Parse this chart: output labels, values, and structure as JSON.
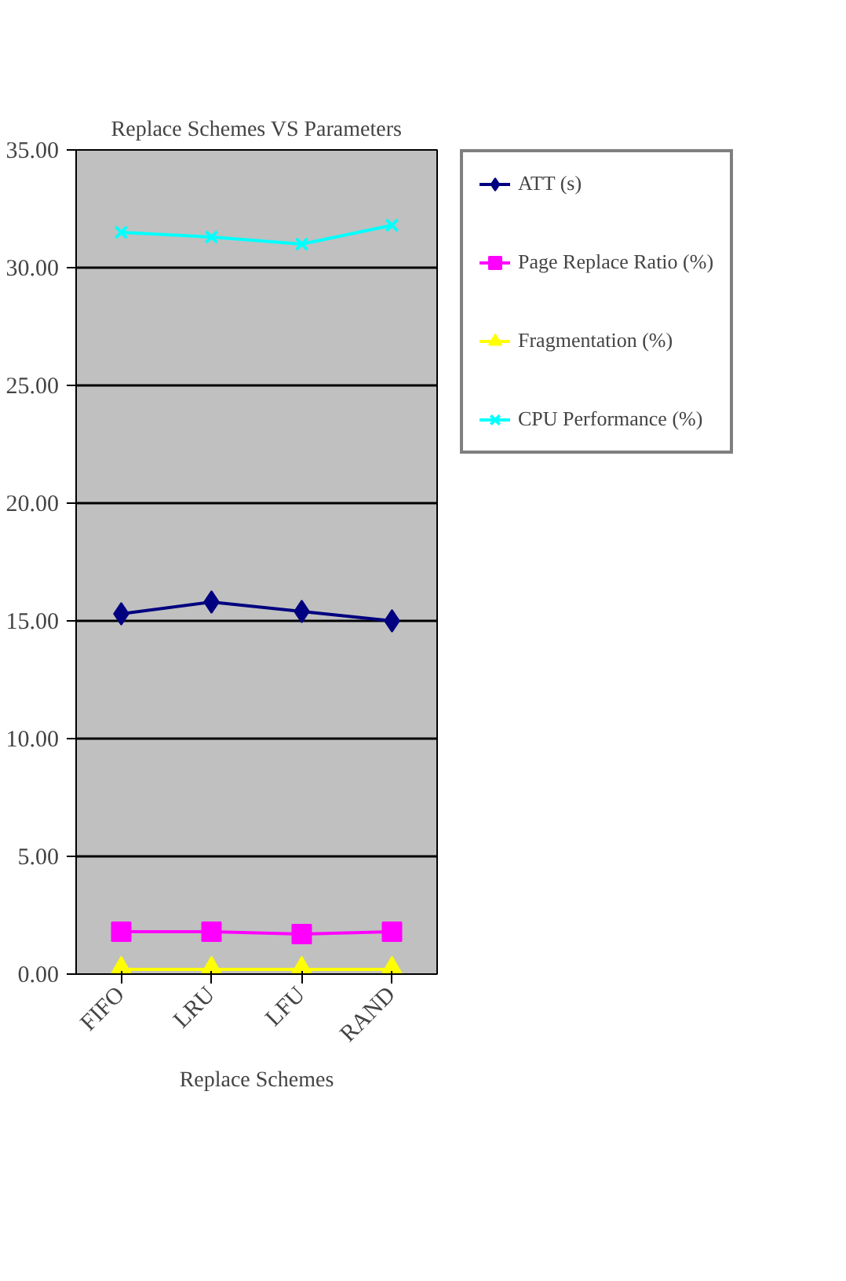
{
  "chart_data": {
    "type": "line",
    "title": "Replace Schemes VS Parameters",
    "xlabel": "Replace Schemes",
    "categories": [
      "FIFO",
      "LRU",
      "LFU",
      "RAND"
    ],
    "series": [
      {
        "name": "ATT (s)",
        "color": "#000080",
        "marker": "diamond",
        "values": [
          15.3,
          15.8,
          15.4,
          15.0
        ]
      },
      {
        "name": "Page Replace Ratio (%)",
        "color": "#ff00ff",
        "marker": "square",
        "values": [
          1.8,
          1.8,
          1.7,
          1.8
        ]
      },
      {
        "name": "Fragmentation (%)",
        "color": "#ffff00",
        "marker": "triangle",
        "values": [
          0.2,
          0.2,
          0.2,
          0.2
        ]
      },
      {
        "name": "CPU Performance (%)",
        "color": "#00ffff",
        "marker": "cross",
        "values": [
          31.5,
          31.3,
          31.0,
          31.8
        ]
      }
    ],
    "ylim": [
      0,
      35
    ],
    "yticks": [
      {
        "value": 0,
        "label": "0.00"
      },
      {
        "value": 5,
        "label": "5.00"
      },
      {
        "value": 10,
        "label": "10.00"
      },
      {
        "value": 15,
        "label": "15.00"
      },
      {
        "value": 20,
        "label": "20.00"
      },
      {
        "value": 25,
        "label": "25.00"
      },
      {
        "value": 30,
        "label": "30.00"
      },
      {
        "value": 35,
        "label": "35.00"
      }
    ],
    "grid": "y",
    "legend": "right"
  }
}
